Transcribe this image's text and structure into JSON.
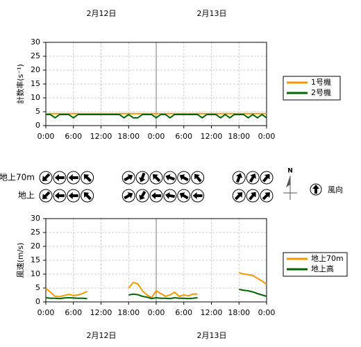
{
  "dates": [
    "2月12日",
    "2月13日"
  ],
  "wind": {
    "legend": "風向",
    "north": "N",
    "x": [
      0,
      3,
      6,
      9,
      18,
      21,
      24,
      27,
      30,
      33,
      42,
      45,
      48
    ],
    "rows": [
      {
        "name": "地上70m",
        "directions": [
          225,
          270,
          270,
          315,
          60,
          200,
          315,
          290,
          300,
          320,
          20,
          30,
          40
        ]
      },
      {
        "name": "地上",
        "directions": [
          225,
          270,
          270,
          315,
          60,
          210,
          270,
          280,
          300,
          270,
          45,
          40,
          45
        ]
      }
    ]
  },
  "chart_data": [
    {
      "type": "line",
      "y_label": "計数率(s⁻¹)",
      "xlim": [
        0,
        48
      ],
      "ylim": [
        0,
        30
      ],
      "yticks": [
        0,
        5,
        10,
        15,
        20,
        25,
        30
      ],
      "xticks": [
        {
          "value": 0,
          "label": "0:00"
        },
        {
          "value": 6,
          "label": "6:00"
        },
        {
          "value": 12,
          "label": "12:00"
        },
        {
          "value": 18,
          "label": "18:00"
        },
        {
          "value": 24,
          "label": "0:00"
        },
        {
          "value": 30,
          "label": "6:00"
        },
        {
          "value": 36,
          "label": "12:00"
        },
        {
          "value": 42,
          "label": "18:00"
        },
        {
          "value": 48,
          "label": "0:00"
        }
      ],
      "grid": true,
      "legend": "right",
      "x": [
        0,
        1,
        2,
        3,
        4,
        5,
        6,
        7,
        8,
        9,
        10,
        11,
        12,
        13,
        14,
        15,
        16,
        17,
        18,
        19,
        20,
        21,
        22,
        23,
        24,
        25,
        26,
        27,
        28,
        29,
        30,
        31,
        32,
        33,
        34,
        35,
        36,
        37,
        38,
        39,
        40,
        41,
        42,
        43,
        44,
        45,
        46,
        47,
        48
      ],
      "series": [
        {
          "name": "1号機",
          "color": "#f39800",
          "values": [
            4.3,
            4.3,
            4.3,
            4.3,
            4.3,
            4.3,
            4.3,
            4.3,
            4.3,
            4.3,
            4.3,
            4.3,
            4.3,
            4.3,
            4.3,
            4.3,
            4.3,
            4.3,
            4.3,
            4.3,
            4.3,
            4.3,
            4.3,
            4.3,
            4.3,
            4.3,
            4.3,
            4.3,
            4.3,
            4.3,
            4.3,
            4.3,
            4.3,
            4.3,
            4.3,
            4.3,
            4.3,
            4.3,
            4.3,
            4.3,
            4.3,
            4.3,
            4.3,
            4.3,
            4.3,
            4.3,
            4.3,
            4.3,
            4.3
          ]
        },
        {
          "name": "2号機",
          "color": "#006400",
          "values": [
            4,
            4,
            2.8,
            4,
            4,
            4,
            2.8,
            4,
            4,
            4,
            4,
            4,
            4,
            4,
            4,
            4,
            4,
            2.8,
            4,
            2.8,
            2.8,
            4,
            4,
            4,
            2.8,
            4,
            4,
            2.8,
            4,
            4,
            4,
            4,
            4,
            4,
            2.8,
            4,
            4,
            4,
            2.8,
            4,
            2.8,
            4,
            4,
            4,
            2.8,
            4,
            2.8,
            4,
            2.8
          ]
        }
      ]
    },
    {
      "type": "line",
      "y_label": "風速(m/s)",
      "xlim": [
        0,
        48
      ],
      "ylim": [
        0,
        30
      ],
      "yticks": [
        0,
        5,
        10,
        15,
        20,
        25,
        30
      ],
      "xticks": [
        {
          "value": 0,
          "label": "0:00"
        },
        {
          "value": 6,
          "label": "6:00"
        },
        {
          "value": 12,
          "label": "12:00"
        },
        {
          "value": 18,
          "label": "18:00"
        },
        {
          "value": 24,
          "label": "0:00"
        },
        {
          "value": 30,
          "label": "6:00"
        },
        {
          "value": 36,
          "label": "12:00"
        },
        {
          "value": 42,
          "label": "18:00"
        },
        {
          "value": 48,
          "label": "0:00"
        }
      ],
      "grid": true,
      "legend": "right",
      "x": [
        0,
        1,
        2,
        3,
        4,
        5,
        6,
        7,
        8,
        9,
        10,
        11,
        12,
        13,
        14,
        15,
        16,
        17,
        18,
        19,
        20,
        21,
        22,
        23,
        24,
        25,
        26,
        27,
        28,
        29,
        30,
        31,
        32,
        33,
        34,
        35,
        36,
        37,
        38,
        39,
        40,
        41,
        42,
        43,
        44,
        45,
        46,
        47,
        48
      ],
      "series": [
        {
          "name": "地上70m",
          "color": "#f39800",
          "values": [
            4.8,
            3.5,
            2,
            1.9,
            2.3,
            2.7,
            2.3,
            2.5,
            3,
            3.8,
            null,
            null,
            null,
            null,
            null,
            null,
            null,
            null,
            5,
            7,
            6.5,
            4,
            2.5,
            1.5,
            4,
            3,
            2,
            2.5,
            3.5,
            2,
            2.5,
            2.2,
            2.8,
            2.8,
            null,
            null,
            null,
            null,
            null,
            null,
            null,
            null,
            10.5,
            10,
            9.8,
            9.5,
            8.5,
            7.5,
            6.3
          ]
        },
        {
          "name": "地上高",
          "color": "#006400",
          "values": [
            1.5,
            1.3,
            1.3,
            1.2,
            1.4,
            1.5,
            1.4,
            1.3,
            1.3,
            1.2,
            null,
            null,
            null,
            null,
            null,
            null,
            null,
            null,
            2.5,
            2.8,
            2.6,
            2,
            1.7,
            1.2,
            1.5,
            1.3,
            1.3,
            1.2,
            1.5,
            1.3,
            1.3,
            1.2,
            1.3,
            1.5,
            null,
            null,
            null,
            null,
            null,
            null,
            null,
            null,
            4.5,
            4.2,
            4,
            3.6,
            3,
            2.5,
            2
          ]
        }
      ]
    }
  ]
}
